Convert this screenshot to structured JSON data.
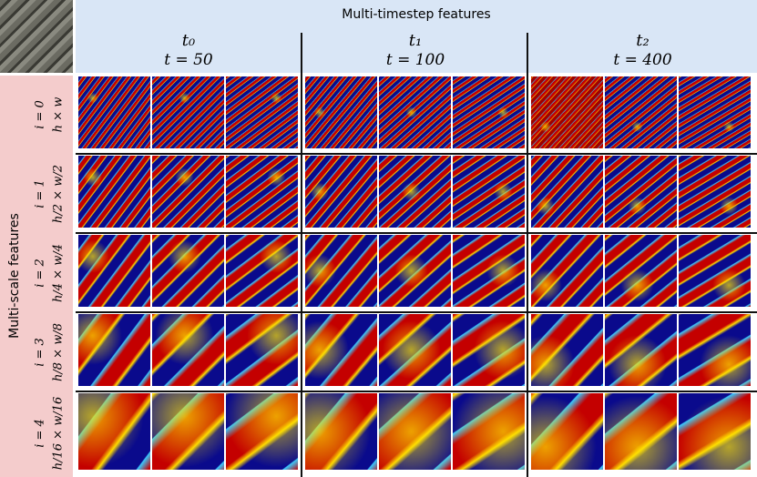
{
  "header": {
    "title": "Multi-timestep features",
    "columns": [
      {
        "timestep": "t₀",
        "value": "t = 50"
      },
      {
        "timestep": "t₁",
        "value": "t = 100"
      },
      {
        "timestep": "t₂",
        "value": "t = 400"
      }
    ]
  },
  "side": {
    "title": "Multi-scale features",
    "rows": [
      {
        "index": "i = 0",
        "size": "h × w"
      },
      {
        "index": "i = 1",
        "size": "h/2 × w/2"
      },
      {
        "index": "i = 2",
        "size": "h/4 × w/4"
      },
      {
        "index": "i = 3",
        "size": "h/8 × w/8"
      },
      {
        "index": "i = 4",
        "size": "h/16 × w/16"
      }
    ]
  }
}
